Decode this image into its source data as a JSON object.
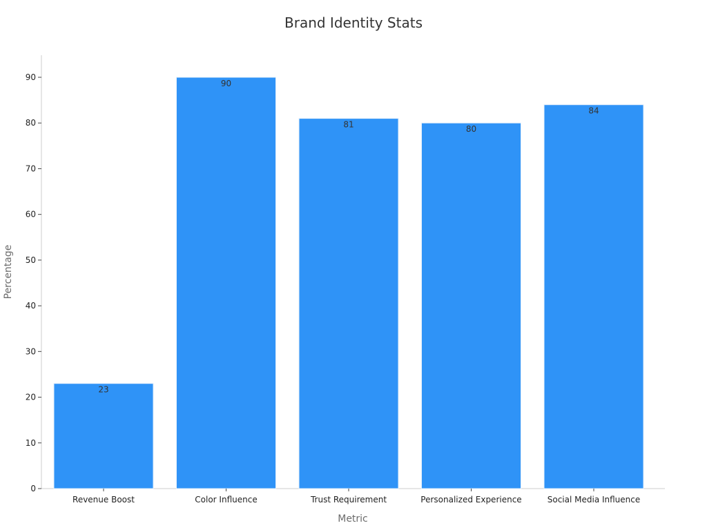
{
  "chart_data": {
    "type": "bar",
    "title": "Brand Identity Stats",
    "xlabel": "Metric",
    "ylabel": "Percentage",
    "categories": [
      "Revenue Boost",
      "Color Influence",
      "Trust Requirement",
      "Personalized Experience",
      "Social Media Influence"
    ],
    "values": [
      23,
      90,
      81,
      80,
      84
    ],
    "ylim": [
      0,
      95
    ],
    "yticks": [
      0,
      10,
      20,
      30,
      40,
      50,
      60,
      70,
      80,
      90
    ],
    "grid": false,
    "legend": "none",
    "colors": {
      "bar": "#2f93f7",
      "bar_edge": "#e6f0fb",
      "axis": "#cccccc",
      "title": "#333333",
      "axis_label": "#6b6b6b",
      "tick_label": "#222222",
      "value_label": "#333333"
    }
  }
}
